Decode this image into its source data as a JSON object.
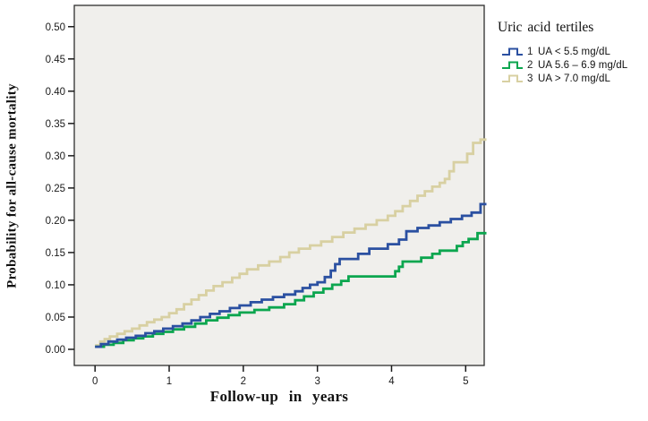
{
  "chart_data": {
    "type": "line",
    "line_style": "step-after (Kaplan-Meier cumulative incidence curves)",
    "title": "",
    "xlabel": "Follow-up in years",
    "ylabel": "Probability for all-cause mortality",
    "xlim": [
      -0.28,
      5.25
    ],
    "ylim": [
      -0.025,
      0.533
    ],
    "xticks": [
      0,
      1,
      2,
      3,
      4,
      5
    ],
    "xtick_labels": [
      "0",
      "1",
      "2",
      "3",
      "4",
      "5"
    ],
    "yticks": [
      0.0,
      0.05,
      0.1,
      0.15,
      0.2,
      0.25,
      0.3,
      0.35,
      0.4,
      0.45,
      0.5
    ],
    "ytick_labels": [
      "0.00",
      "0.05",
      "0.10",
      "0.15",
      "0.20",
      "0.25",
      "0.30",
      "0.35",
      "0.40",
      "0.45",
      "0.50"
    ],
    "grid": false,
    "plot_background": "#f0efec",
    "frame_color": "#2e2e2e",
    "legend_position": "outside-top-right",
    "legend_title": "Uric acid tertiles",
    "series": [
      {
        "name": "1",
        "label": "UA < 5.5 mg/dL",
        "color": "#2b50a1",
        "points": [
          [
            0,
            0.004
          ],
          [
            0.08,
            0.008
          ],
          [
            0.18,
            0.012
          ],
          [
            0.3,
            0.015
          ],
          [
            0.42,
            0.018
          ],
          [
            0.55,
            0.021
          ],
          [
            0.68,
            0.025
          ],
          [
            0.8,
            0.028
          ],
          [
            0.92,
            0.032
          ],
          [
            1.05,
            0.036
          ],
          [
            1.18,
            0.04
          ],
          [
            1.3,
            0.045
          ],
          [
            1.42,
            0.05
          ],
          [
            1.55,
            0.055
          ],
          [
            1.68,
            0.059
          ],
          [
            1.82,
            0.064
          ],
          [
            1.95,
            0.068
          ],
          [
            2.1,
            0.073
          ],
          [
            2.25,
            0.077
          ],
          [
            2.4,
            0.081
          ],
          [
            2.55,
            0.085
          ],
          [
            2.7,
            0.09
          ],
          [
            2.8,
            0.095
          ],
          [
            2.9,
            0.1
          ],
          [
            3.0,
            0.104
          ],
          [
            3.1,
            0.112
          ],
          [
            3.18,
            0.122
          ],
          [
            3.24,
            0.132
          ],
          [
            3.3,
            0.14
          ],
          [
            3.55,
            0.148
          ],
          [
            3.7,
            0.156
          ],
          [
            3.95,
            0.163
          ],
          [
            4.1,
            0.17
          ],
          [
            4.2,
            0.183
          ],
          [
            4.35,
            0.188
          ],
          [
            4.5,
            0.192
          ],
          [
            4.65,
            0.197
          ],
          [
            4.8,
            0.202
          ],
          [
            4.95,
            0.207
          ],
          [
            5.08,
            0.212
          ],
          [
            5.2,
            0.225
          ],
          [
            5.28,
            0.225
          ]
        ]
      },
      {
        "name": "2",
        "label": "UA 5.6 – 6.9 mg/dL",
        "color": "#0ca64f",
        "points": [
          [
            0,
            0.004
          ],
          [
            0.12,
            0.007
          ],
          [
            0.25,
            0.01
          ],
          [
            0.38,
            0.014
          ],
          [
            0.52,
            0.017
          ],
          [
            0.65,
            0.02
          ],
          [
            0.78,
            0.024
          ],
          [
            0.92,
            0.027
          ],
          [
            1.05,
            0.031
          ],
          [
            1.2,
            0.035
          ],
          [
            1.35,
            0.04
          ],
          [
            1.5,
            0.045
          ],
          [
            1.65,
            0.049
          ],
          [
            1.8,
            0.053
          ],
          [
            1.95,
            0.057
          ],
          [
            2.15,
            0.061
          ],
          [
            2.35,
            0.065
          ],
          [
            2.55,
            0.07
          ],
          [
            2.7,
            0.076
          ],
          [
            2.82,
            0.082
          ],
          [
            2.95,
            0.088
          ],
          [
            3.08,
            0.094
          ],
          [
            3.2,
            0.1
          ],
          [
            3.32,
            0.106
          ],
          [
            3.42,
            0.113
          ],
          [
            4.05,
            0.121
          ],
          [
            4.1,
            0.128
          ],
          [
            4.15,
            0.136
          ],
          [
            4.4,
            0.142
          ],
          [
            4.55,
            0.148
          ],
          [
            4.65,
            0.153
          ],
          [
            4.88,
            0.16
          ],
          [
            4.96,
            0.166
          ],
          [
            5.04,
            0.171
          ],
          [
            5.16,
            0.18
          ],
          [
            5.28,
            0.18
          ]
        ]
      },
      {
        "name": "3",
        "label": "UA > 7.0 mg/dL",
        "color": "#d8d0a2",
        "points": [
          [
            0,
            0.006
          ],
          [
            0.07,
            0.012
          ],
          [
            0.13,
            0.016
          ],
          [
            0.2,
            0.02
          ],
          [
            0.3,
            0.024
          ],
          [
            0.4,
            0.028
          ],
          [
            0.5,
            0.032
          ],
          [
            0.6,
            0.037
          ],
          [
            0.7,
            0.042
          ],
          [
            0.8,
            0.046
          ],
          [
            0.9,
            0.05
          ],
          [
            1.0,
            0.056
          ],
          [
            1.1,
            0.062
          ],
          [
            1.2,
            0.07
          ],
          [
            1.3,
            0.077
          ],
          [
            1.4,
            0.084
          ],
          [
            1.5,
            0.091
          ],
          [
            1.6,
            0.098
          ],
          [
            1.72,
            0.104
          ],
          [
            1.85,
            0.111
          ],
          [
            1.95,
            0.117
          ],
          [
            2.05,
            0.124
          ],
          [
            2.2,
            0.13
          ],
          [
            2.35,
            0.136
          ],
          [
            2.5,
            0.143
          ],
          [
            2.62,
            0.15
          ],
          [
            2.75,
            0.156
          ],
          [
            2.9,
            0.161
          ],
          [
            3.05,
            0.167
          ],
          [
            3.2,
            0.174
          ],
          [
            3.35,
            0.181
          ],
          [
            3.5,
            0.187
          ],
          [
            3.65,
            0.193
          ],
          [
            3.8,
            0.2
          ],
          [
            3.95,
            0.207
          ],
          [
            4.05,
            0.214
          ],
          [
            4.15,
            0.222
          ],
          [
            4.25,
            0.23
          ],
          [
            4.35,
            0.238
          ],
          [
            4.45,
            0.245
          ],
          [
            4.55,
            0.252
          ],
          [
            4.65,
            0.258
          ],
          [
            4.72,
            0.264
          ],
          [
            4.78,
            0.276
          ],
          [
            4.84,
            0.29
          ],
          [
            5.02,
            0.303
          ],
          [
            5.1,
            0.32
          ],
          [
            5.2,
            0.325
          ],
          [
            5.28,
            0.325
          ]
        ]
      }
    ]
  }
}
